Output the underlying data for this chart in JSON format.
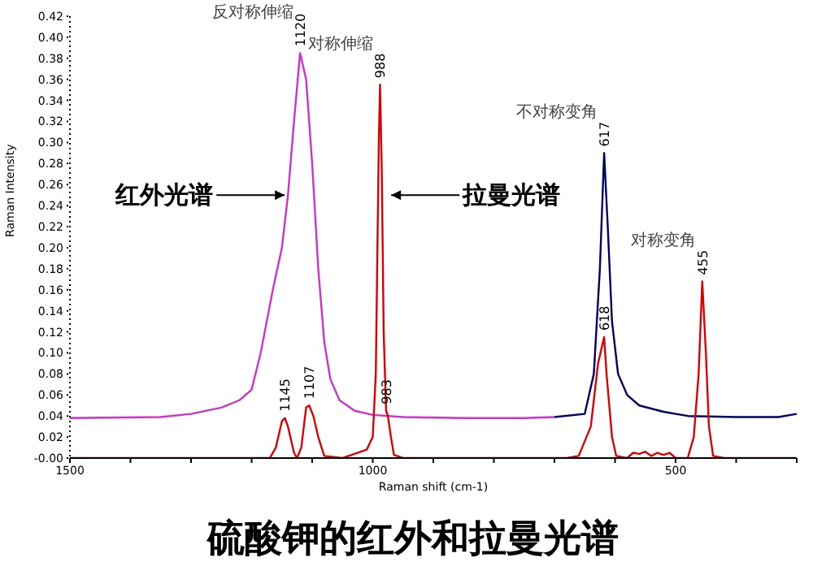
{
  "chart_data": {
    "type": "line",
    "title": "硫酸钾的红外和拉曼光谱",
    "xlabel": "Raman shift (cm-1)",
    "ylabel": "Raman Intensity",
    "xlim": [
      1500,
      300
    ],
    "xticks": [
      1500,
      {
        "value": 1400,
        "label": null
      },
      {
        "value": 1300,
        "label": null
      },
      {
        "value": 1200,
        "label": null
      },
      {
        "value": 1100,
        "label": null
      },
      1000,
      {
        "value": 900,
        "label": null
      },
      {
        "value": 800,
        "label": null
      },
      {
        "value": 700,
        "label": null
      },
      {
        "value": 600,
        "label": null
      },
      500,
      {
        "value": 400,
        "label": null
      },
      {
        "value": 300,
        "label": null
      }
    ],
    "ylim": [
      0,
      0.42
    ],
    "yticks": [
      {
        "value": 0,
        "label": "-0.00"
      },
      {
        "value": 0.02,
        "label": "0.02"
      },
      {
        "value": 0.04,
        "label": "0.04"
      },
      {
        "value": 0.06,
        "label": "0.06"
      },
      {
        "value": 0.08,
        "label": "0.08"
      },
      {
        "value": 0.1,
        "label": "0.10"
      },
      {
        "value": 0.12,
        "label": "0.12"
      },
      {
        "value": 0.14,
        "label": "0.14"
      },
      {
        "value": 0.16,
        "label": "0.16"
      },
      {
        "value": 0.18,
        "label": "0.18"
      },
      {
        "value": 0.2,
        "label": "0.20"
      },
      {
        "value": 0.22,
        "label": "0.22"
      },
      {
        "value": 0.24,
        "label": "0.24"
      },
      {
        "value": 0.26,
        "label": "0.26"
      },
      {
        "value": 0.28,
        "label": "0.28"
      },
      {
        "value": 0.3,
        "label": "0.30"
      },
      {
        "value": 0.32,
        "label": "0.32"
      },
      {
        "value": 0.34,
        "label": "0.34"
      },
      {
        "value": 0.36,
        "label": "0.36"
      },
      {
        "value": 0.38,
        "label": "0.38"
      },
      {
        "value": 0.4,
        "label": "0.40"
      },
      {
        "value": 0.42,
        "label": "0.42"
      }
    ],
    "grid": false,
    "marker": "none",
    "line_style": "solid",
    "series": [
      {
        "color": "#cc33cc",
        "x": [
          1500,
          1350,
          1300,
          1250,
          1220,
          1200,
          1185,
          1175,
          1165,
          1150,
          1140,
          1130,
          1120,
          1110,
          1100,
          1090,
          1080,
          1070,
          1055,
          1030,
          1000,
          950,
          850,
          750,
          700
        ],
        "values": [
          0.038,
          0.039,
          0.042,
          0.048,
          0.055,
          0.065,
          0.1,
          0.13,
          0.16,
          0.2,
          0.25,
          0.32,
          0.385,
          0.36,
          0.28,
          0.18,
          0.11,
          0.075,
          0.055,
          0.045,
          0.041,
          0.039,
          0.038,
          0.038,
          0.039
        ]
      },
      {
        "color": "#000066",
        "x": [
          700,
          650,
          635,
          625,
          618,
          612,
          605,
          595,
          580,
          560,
          520,
          480,
          400,
          330,
          300
        ],
        "values": [
          0.039,
          0.042,
          0.08,
          0.18,
          0.29,
          0.22,
          0.13,
          0.08,
          0.06,
          0.05,
          0.044,
          0.04,
          0.039,
          0.039,
          0.042
        ]
      },
      {
        "color": "#dd0000",
        "x": [
          1500,
          1170,
          1160,
          1150,
          1145,
          1140,
          1130,
          1125,
          1118,
          1110,
          1105,
          1098,
          1090,
          1080,
          1050,
          1030,
          1010,
          1000,
          995,
          990,
          988,
          985,
          982,
          978,
          975,
          970,
          965,
          950,
          680,
          660,
          640,
          628,
          622,
          618,
          614,
          605,
          598,
          580,
          570,
          560,
          550,
          540,
          530,
          520,
          510,
          500,
          480,
          470,
          462,
          456,
          450,
          445,
          438,
          420,
          300
        ],
        "values": [
          0,
          0,
          0.01,
          0.035,
          0.038,
          0.03,
          0.005,
          0,
          0.01,
          0.048,
          0.05,
          0.04,
          0.02,
          0.002,
          0,
          0.004,
          0.008,
          0.02,
          0.08,
          0.3,
          0.355,
          0.27,
          0.12,
          0.045,
          0.04,
          0.02,
          0.003,
          0,
          0,
          0.002,
          0.03,
          0.09,
          0.105,
          0.115,
          0.08,
          0.02,
          0.002,
          0,
          0.005,
          0.004,
          0.006,
          0.002,
          0.005,
          0.003,
          0.005,
          0,
          0,
          0.02,
          0.08,
          0.168,
          0.1,
          0.03,
          0.002,
          0,
          0
        ]
      }
    ],
    "annotations": [
      {
        "text": "1120",
        "x": 1120,
        "y": 0.385
      },
      {
        "text": "988",
        "x": 988,
        "y": 0.355
      },
      {
        "text": "617",
        "x": 618,
        "y": 0.29
      },
      {
        "text": "455",
        "x": 456,
        "y": 0.168
      },
      {
        "text": "1145",
        "x": 1145,
        "y": 0.038
      },
      {
        "text": "1107",
        "x": 1105,
        "y": 0.05
      },
      {
        "text": "983",
        "x": 978,
        "y": 0.045
      },
      {
        "text": "618",
        "x": 618,
        "y": 0.115
      },
      {
        "text": "反对称伸缩",
        "x": 1120,
        "y": 0.385
      },
      {
        "text": "对称伸缩",
        "x": 988,
        "y": 0.355
      },
      {
        "text": "不对称变角",
        "x": 618,
        "y": 0.29
      },
      {
        "text": "对称变角",
        "x": 456,
        "y": 0.168
      },
      {
        "text": "红外光谱",
        "x": 1140,
        "y": 0.25
      },
      {
        "text": "拉曼光谱",
        "x": 975,
        "y": 0.25
      }
    ]
  }
}
